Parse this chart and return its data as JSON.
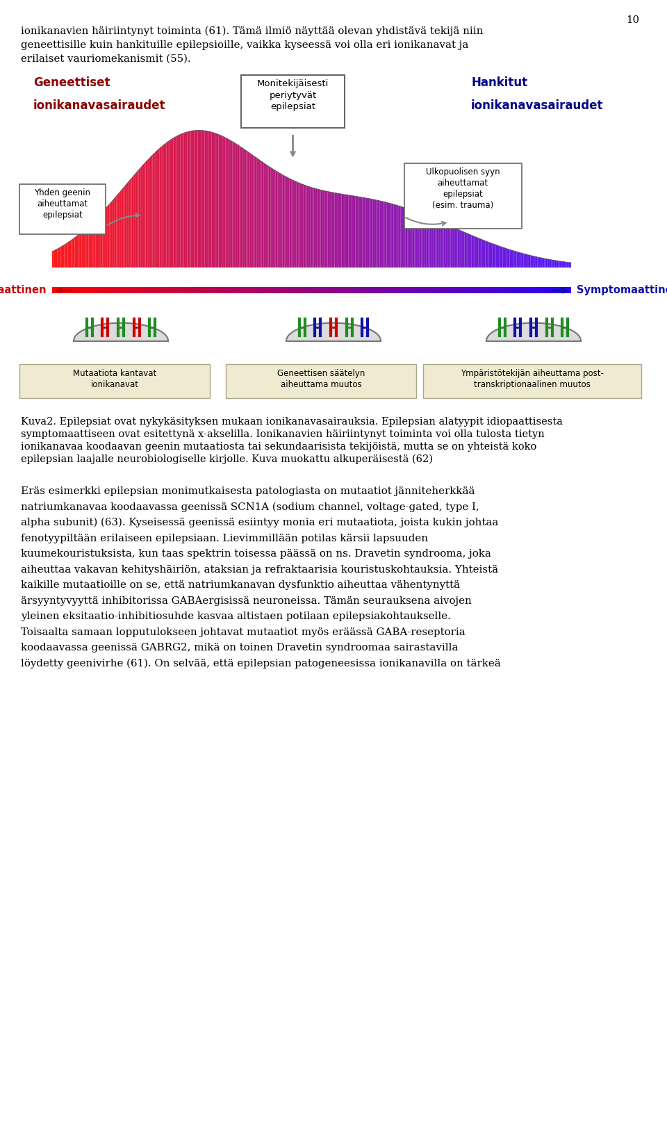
{
  "page_number": "10",
  "bg_color": "#ffffff",
  "top_text_1": "ionikanavien häiriintynyt toiminta (61). Tämä ilmiö näyttää olevan yhdistävä tekijä niin",
  "top_text_2": "geneettisille kuin hankituille epilepsioille, vaikka kyseessä voi olla eri ionikanavat ja",
  "top_text_3": "erilaiset vauriomekanismit (55).",
  "label_geneettiset_1": "Geneettiset",
  "label_geneettiset_2": "ionikanavasairaudet",
  "label_hankitut_1": "Hankitut",
  "label_hankitut_2": "ionikanavasairaudet",
  "label_moniteki": "Monitekijäisesti\nperiytyvät\nepilepsiat",
  "label_yhden": "Yhden geenin\naiheuttamat\nepilepsiat",
  "label_ulko": "Ulkopuolisen syyn\naiheuttamat\nepilepsiat\n(esim. trauma)",
  "label_idio": "Idiopaattinen",
  "label_sympto": "Symptomaattinen",
  "label_mutaatio": "Mutaatiota kantavat\nionikanavat",
  "label_geneettinen": "Geneettisen säätelyn\naiheuttama muutos",
  "label_ymparisto": "Ympäristötekijän aiheuttama post-\ntranskriptionaalinen muutos",
  "caption_line1": "Kuva2. Epilepsiat ovat nykykäsityksen mukaan ionikanavasairauksia. Epilepsian alatyypit idiopaattisesta",
  "caption_line2": "symptomaattiseen ovat esitettynä x-akselilla. Ionikanavien häiriintynyt toiminta voi olla tulosta tietyn",
  "caption_line3": "ionikanavaa koodaavan geenin mutaatiosta tai sekundaarisista tekijöistä, mutta se on yhteistä koko",
  "caption_line4": "epilepsian laajalle neurobiologiselle kirjolle. Kuva muokattu alkuperäisestä (62)",
  "body_lines": [
    "Eräs esimerkki epilepsian monimutkaisesta patologiasta on mutaatiot jänniteherkkää",
    "natriumkanavaa koodaavassa geenissä SCN1A (sodium channel, voltage-gated, type I,",
    "alpha subunit) (63). Kyseisessä geenissä esiintyy monia eri mutaatiota, joista kukin johtaa",
    "fenotyypiltään erilaiseen epilepsiaan. Lievimmillään potilas kärsii lapsuuden",
    "kuumekouristuksista, kun taas spektrin toisessa päässä on ns. Dravetin syndrooma, joka",
    "aiheuttaa vakavan kehityshäiriön, ataksian ja refraktaarisia kouristuskohtauksia. Yhteistä",
    "kaikille mutaatioille on se, että natriumkanavan dysfunktio aiheuttaa vähentynyttä",
    "ärsyyntyvyyttä inhibitorissa GABAergisissä neuroneissa. Tämän seurauksena aivojen",
    "yleinen eksitaatio-inhibitiosuhde kasvaa altistaen potilaan epilepsiakohtaukselle.",
    "Toisaalta samaan lopputulokseen johtavat mutaatiot myös eräässä GABA-reseptoria",
    "koodaavassa geenissä GABRG2, mikä on toinen Dravetin syndroomaa sairastavilla",
    "löydetty geenivirhe (61). On selvää, että epilepsian patogeneesissa ionikanavilla on tärkeä"
  ]
}
